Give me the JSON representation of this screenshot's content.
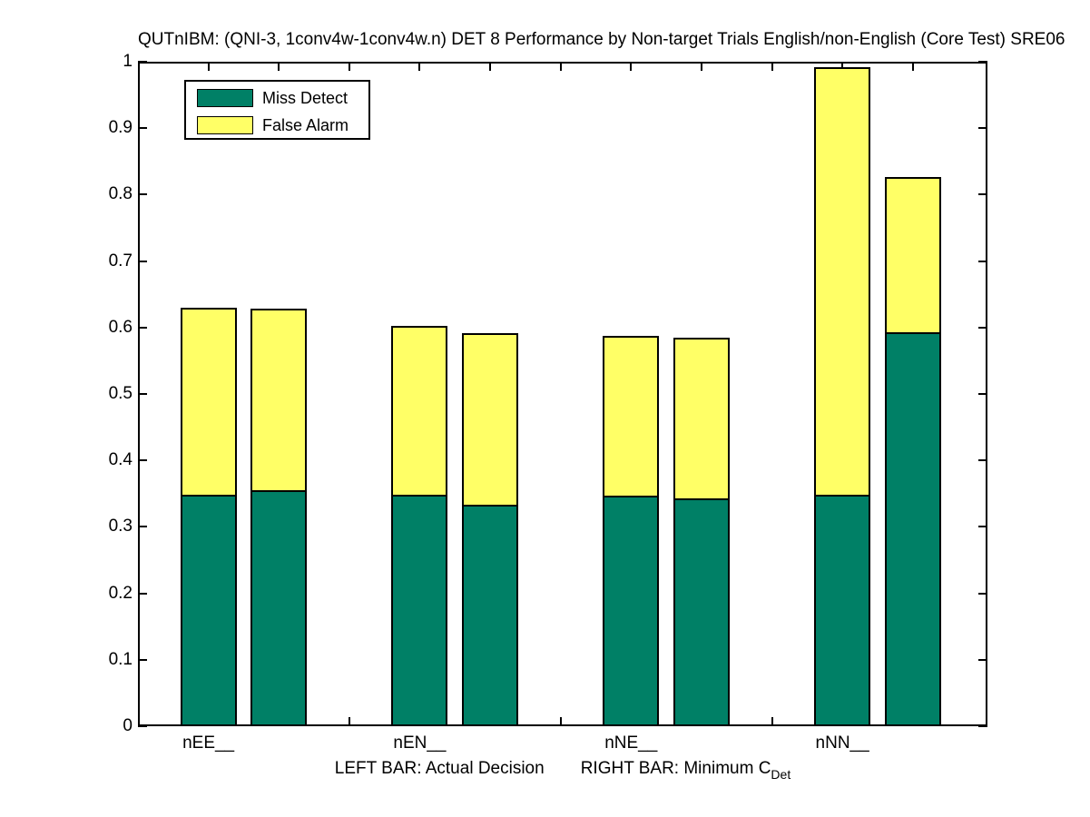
{
  "chart_data": {
    "type": "bar",
    "stacked": true,
    "title": "QUTnIBM: (QNI-3, 1conv4w-1conv4w.n) DET 8 Performance by Non-target Trials English/non-English (Core Test) SRE06",
    "xlabel_left": "LEFT BAR: Actual Decision",
    "xlabel_right": "RIGHT BAR: Minimum C",
    "xlabel_subscript": "Det",
    "ylim": [
      0,
      1
    ],
    "ytick_values": [
      0,
      0.1,
      0.2,
      0.3,
      0.4,
      0.5,
      0.6,
      0.7,
      0.8,
      0.9,
      1
    ],
    "ytick_labels": [
      "0",
      "0.1",
      "0.2",
      "0.3",
      "0.4",
      "0.5",
      "0.6",
      "0.7",
      "0.8",
      "0.9",
      "1"
    ],
    "xlim": [
      0,
      12.06
    ],
    "xticks_top": [
      1,
      2,
      3,
      4,
      5,
      6,
      7,
      8,
      9,
      10,
      11
    ],
    "xticks_bottom_visible": [
      3,
      6,
      9
    ],
    "bar_width_units": 0.8,
    "series_names": [
      "Miss Detect",
      "False Alarm"
    ],
    "grid": false,
    "legend_position": "upper-left-inside",
    "categories": [
      {
        "label": "nEE__",
        "label_x": 1,
        "bars": [
          {
            "x": 1,
            "role": "actual_decision",
            "miss_detect": 0.345,
            "false_alarm": 0.285,
            "total": 0.63
          },
          {
            "x": 2,
            "role": "minimum_cdet",
            "miss_detect": 0.352,
            "false_alarm": 0.276,
            "total": 0.628
          }
        ]
      },
      {
        "label": "nEN__",
        "label_x": 4,
        "bars": [
          {
            "x": 4,
            "role": "actual_decision",
            "miss_detect": 0.345,
            "false_alarm": 0.257,
            "total": 0.602
          },
          {
            "x": 5,
            "role": "minimum_cdet",
            "miss_detect": 0.33,
            "false_alarm": 0.261,
            "total": 0.591
          }
        ]
      },
      {
        "label": "nNE__",
        "label_x": 7,
        "bars": [
          {
            "x": 7,
            "role": "actual_decision",
            "miss_detect": 0.344,
            "false_alarm": 0.244,
            "total": 0.588
          },
          {
            "x": 8,
            "role": "minimum_cdet",
            "miss_detect": 0.34,
            "false_alarm": 0.245,
            "total": 0.585
          }
        ]
      },
      {
        "label": "nNN__",
        "label_x": 10,
        "bars": [
          {
            "x": 10,
            "role": "actual_decision",
            "miss_detect": 0.345,
            "false_alarm": 0.647,
            "total": 0.992
          },
          {
            "x": 11,
            "role": "minimum_cdet",
            "miss_detect": 0.59,
            "false_alarm": 0.236,
            "total": 0.826
          }
        ]
      }
    ],
    "colors": {
      "miss_detect": "#008066",
      "false_alarm": "#ffff66",
      "axis": "#000000",
      "background": "#ffffff"
    },
    "legend": {
      "items": [
        {
          "label": "Miss Detect",
          "color_key": "miss_detect"
        },
        {
          "label": "False Alarm",
          "color_key": "false_alarm"
        }
      ]
    }
  }
}
